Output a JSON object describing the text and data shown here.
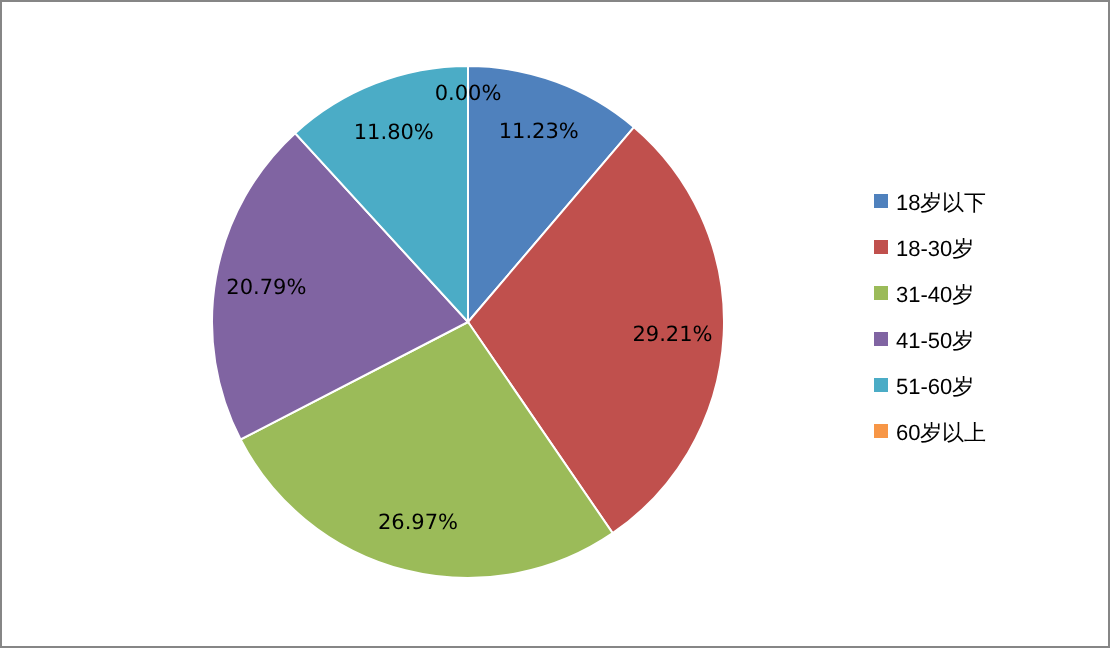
{
  "chart_data": {
    "type": "pie",
    "categories": [
      "18岁以下",
      "18-30岁",
      "31-40岁",
      "41-50岁",
      "51-60岁",
      "60岁以上"
    ],
    "values": [
      11.23,
      29.21,
      26.97,
      20.79,
      11.8,
      0.0
    ],
    "colors": [
      "#4f81bd",
      "#c0504d",
      "#9bbb59",
      "#8064a2",
      "#4bacc6",
      "#f79646"
    ],
    "value_labels": [
      "11.23%",
      "29.21%",
      "26.97%",
      "20.79%",
      "11.80%",
      "0.00%"
    ],
    "legend": "right"
  }
}
